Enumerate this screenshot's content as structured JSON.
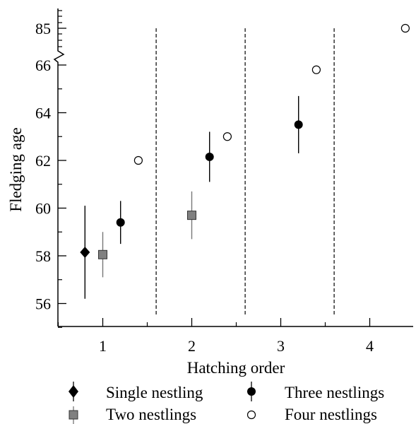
{
  "chart_data": {
    "type": "scatter",
    "title": "",
    "xlabel": "Hatching order",
    "ylabel": "Fledging age",
    "x_ticks": [
      1,
      2,
      3,
      4
    ],
    "x_tick_labels": [
      "1",
      "2",
      "3",
      "4"
    ],
    "xlim": [
      0.5,
      4.5
    ],
    "ylim": [
      55,
      66
    ],
    "y_ticks": [
      56,
      58,
      60,
      62,
      64,
      66
    ],
    "y_tick_labels": [
      "56",
      "58",
      "60",
      "62",
      "64",
      "66"
    ],
    "y_break": {
      "below": 66,
      "above_label": "85",
      "above_value": 85
    },
    "group_dividers_x": [
      1.6,
      2.6,
      3.6
    ],
    "grid": false,
    "legend_position": "bottom",
    "series": [
      {
        "name": "Single nestling",
        "marker": "diamond",
        "color": "#000000",
        "points": [
          {
            "x": 0.8,
            "y": 58.15,
            "err_low": 56.2,
            "err_high": 60.1
          }
        ]
      },
      {
        "name": "Two nestlings",
        "marker": "square",
        "color": "#808080",
        "points": [
          {
            "x": 1.0,
            "y": 58.05,
            "err_low": 57.1,
            "err_high": 59.0
          },
          {
            "x": 2.0,
            "y": 59.7,
            "err_low": 58.7,
            "err_high": 60.7
          }
        ]
      },
      {
        "name": "Three nestlings",
        "marker": "circle",
        "color": "#000000",
        "points": [
          {
            "x": 1.2,
            "y": 59.4,
            "err_low": 58.5,
            "err_high": 60.3
          },
          {
            "x": 2.2,
            "y": 62.15,
            "err_low": 61.1,
            "err_high": 63.2
          },
          {
            "x": 3.2,
            "y": 63.5,
            "err_low": 62.3,
            "err_high": 64.7
          }
        ]
      },
      {
        "name": "Four nestlings",
        "marker": "open-circle",
        "color": "#ffffff",
        "points": [
          {
            "x": 1.4,
            "y": 62.0
          },
          {
            "x": 2.4,
            "y": 63.0
          },
          {
            "x": 3.4,
            "y": 65.8
          },
          {
            "x": 4.4,
            "y": 85,
            "broken_axis": true
          }
        ]
      }
    ]
  }
}
